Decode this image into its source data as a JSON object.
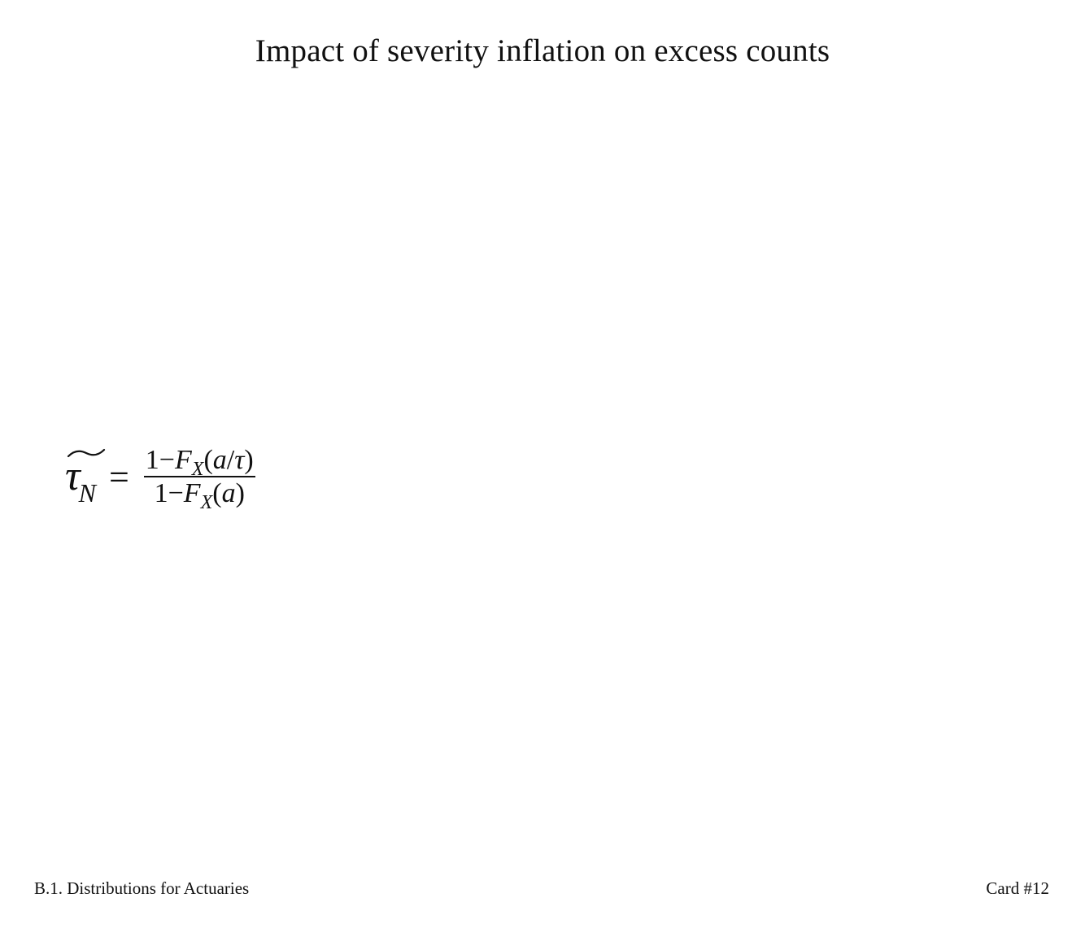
{
  "title": "Impact of severity inflation on excess counts",
  "formula": {
    "lhs_symbol": "τ",
    "lhs_subscript": "N",
    "equals": "=",
    "numerator": {
      "one": "1",
      "minus": "−",
      "F": "F",
      "F_sub": "X",
      "open": "(",
      "arg_a": "a",
      "slash": "/",
      "arg_tau": "τ",
      "close": ")"
    },
    "denominator": {
      "one": "1",
      "minus": "−",
      "F": "F",
      "F_sub": "X",
      "open": "(",
      "arg_a": "a",
      "close": ")"
    }
  },
  "footer": {
    "section": "B.1. Distributions for Actuaries",
    "card": "Card #12"
  }
}
